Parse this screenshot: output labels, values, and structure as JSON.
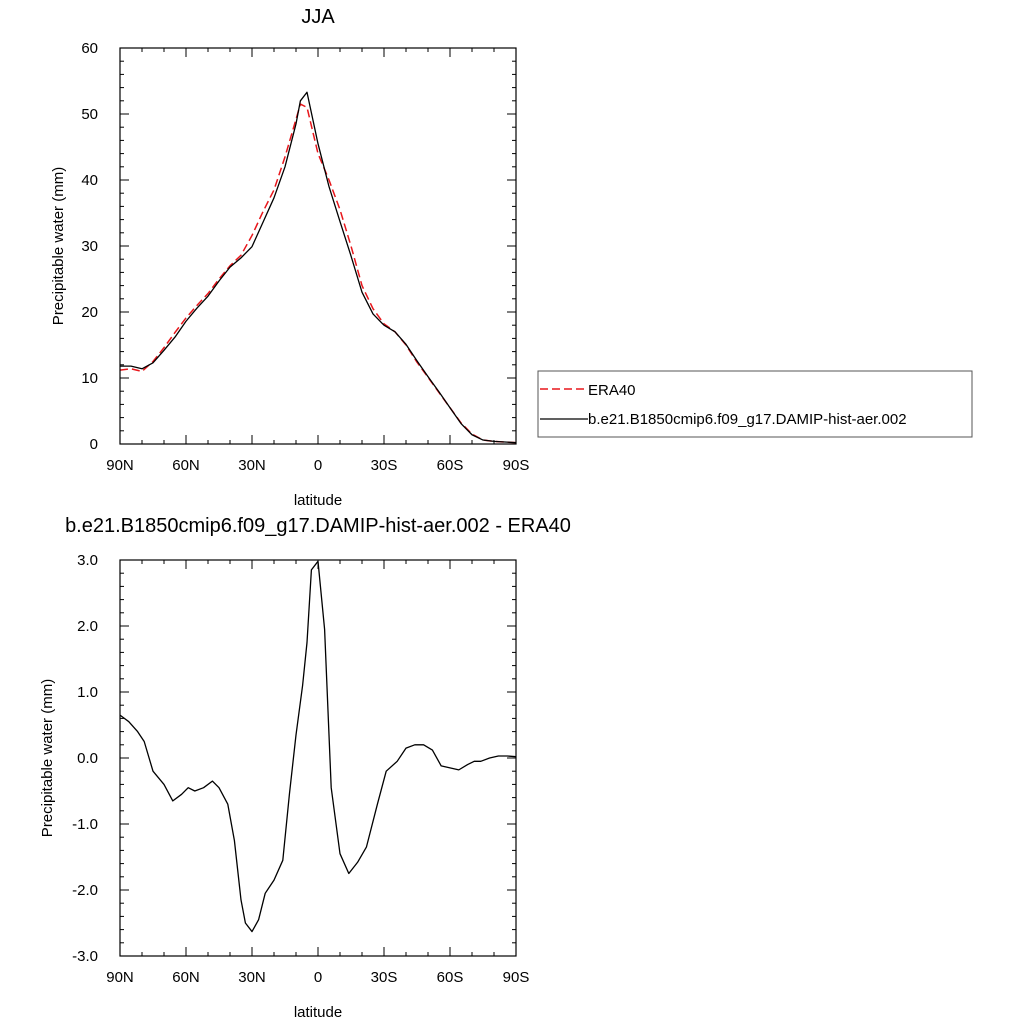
{
  "chart_data": [
    {
      "type": "line",
      "title": "JJA",
      "xlabel": "latitude",
      "ylabel": "Precipitable water (mm)",
      "xlim": [
        90,
        -90
      ],
      "ylim": [
        0,
        60
      ],
      "x_tick_values": [
        90,
        60,
        30,
        0,
        -30,
        -60,
        -90
      ],
      "x_tick_labels": [
        "90N",
        "60N",
        "30N",
        "0",
        "30S",
        "60S",
        "90S"
      ],
      "y_tick_values": [
        0,
        10,
        20,
        30,
        40,
        50,
        60
      ],
      "y_tick_labels": [
        "0",
        "10",
        "20",
        "30",
        "40",
        "50",
        "60"
      ],
      "legend_position": "right",
      "series": [
        {
          "name": "ERA40",
          "color": "#e8161b",
          "dash": "dashed",
          "x": [
            90,
            85,
            80,
            75,
            70,
            65,
            60,
            55,
            50,
            45,
            40,
            35,
            30,
            25,
            20,
            15,
            10,
            8,
            5,
            0,
            -5,
            -10,
            -15,
            -20,
            -25,
            -30,
            -35,
            -40,
            -45,
            -50,
            -55,
            -60,
            -65,
            -70,
            -75,
            -80,
            -85,
            -90
          ],
          "values": [
            11.2,
            11.4,
            11.0,
            12.5,
            14.6,
            16.9,
            19.1,
            21.0,
            22.8,
            25.0,
            27.0,
            28.6,
            31.6,
            35.2,
            38.5,
            43.5,
            49.2,
            51.5,
            51.0,
            44.0,
            40.0,
            35.5,
            30.0,
            24.0,
            20.5,
            18.2,
            17.0,
            15.0,
            12.4,
            10.1,
            7.8,
            5.5,
            3.2,
            1.5,
            0.6,
            0.4,
            0.3,
            0.2
          ]
        },
        {
          "name": "b.e21.B1850cmip6.f09_g17.DAMIP-hist-aer.002",
          "color": "#000000",
          "dash": "solid",
          "x": [
            90,
            85,
            80,
            75,
            70,
            65,
            60,
            55,
            50,
            45,
            40,
            35,
            30,
            25,
            20,
            15,
            10,
            8,
            5,
            0,
            -5,
            -10,
            -15,
            -20,
            -25,
            -30,
            -35,
            -40,
            -45,
            -50,
            -55,
            -60,
            -65,
            -70,
            -75,
            -80,
            -85,
            -90
          ],
          "values": [
            11.8,
            11.8,
            11.4,
            12.3,
            14.2,
            16.2,
            18.6,
            20.6,
            22.4,
            24.7,
            26.8,
            28.2,
            29.9,
            33.6,
            37.3,
            42.0,
            48.5,
            52.0,
            53.3,
            45.5,
            39.0,
            33.7,
            28.5,
            23.0,
            19.7,
            18.0,
            17.0,
            15.1,
            12.6,
            10.2,
            7.9,
            5.5,
            3.1,
            1.4,
            0.6,
            0.4,
            0.3,
            0.2
          ]
        }
      ]
    },
    {
      "type": "line",
      "title": "b.e21.B1850cmip6.f09_g17.DAMIP-hist-aer.002 - ERA40",
      "xlabel": "latitude",
      "ylabel": "Precipitable water (mm)",
      "xlim": [
        90,
        -90
      ],
      "ylim": [
        -3,
        3
      ],
      "x_tick_values": [
        90,
        60,
        30,
        0,
        -30,
        -60,
        -90
      ],
      "x_tick_labels": [
        "90N",
        "60N",
        "30N",
        "0",
        "30S",
        "60S",
        "90S"
      ],
      "y_tick_values": [
        3,
        2,
        1,
        0,
        -1,
        -2,
        -3
      ],
      "y_tick_labels": [
        "3.0",
        "2.0",
        "1.0",
        "0.0",
        "-1.0",
        "-2.0",
        "-3.0"
      ],
      "series": [
        {
          "color": "#000000",
          "dash": "solid",
          "x": [
            90,
            86,
            82,
            79,
            75,
            70,
            66,
            62,
            59,
            56,
            52,
            48,
            45,
            41,
            38,
            35,
            33,
            30,
            27,
            24,
            20,
            16,
            13,
            10,
            7,
            5,
            3,
            0,
            -3,
            -6,
            -10,
            -14,
            -18,
            -22,
            -27,
            -31,
            -36,
            -40,
            -44,
            -48,
            -52,
            -56,
            -60,
            -64,
            -68,
            -71,
            -74,
            -78,
            -82,
            -86,
            -90
          ],
          "values": [
            0.65,
            0.55,
            0.4,
            0.25,
            -0.2,
            -0.4,
            -0.65,
            -0.55,
            -0.45,
            -0.5,
            -0.45,
            -0.35,
            -0.45,
            -0.7,
            -1.25,
            -2.15,
            -2.5,
            -2.63,
            -2.45,
            -2.05,
            -1.85,
            -1.55,
            -0.55,
            0.35,
            1.1,
            1.75,
            2.85,
            2.98,
            1.95,
            -0.45,
            -1.45,
            -1.75,
            -1.58,
            -1.35,
            -0.7,
            -0.2,
            -0.05,
            0.15,
            0.2,
            0.2,
            0.12,
            -0.12,
            -0.15,
            -0.18,
            -0.1,
            -0.05,
            -0.05,
            0.0,
            0.03,
            0.03,
            0.02
          ]
        }
      ]
    }
  ]
}
